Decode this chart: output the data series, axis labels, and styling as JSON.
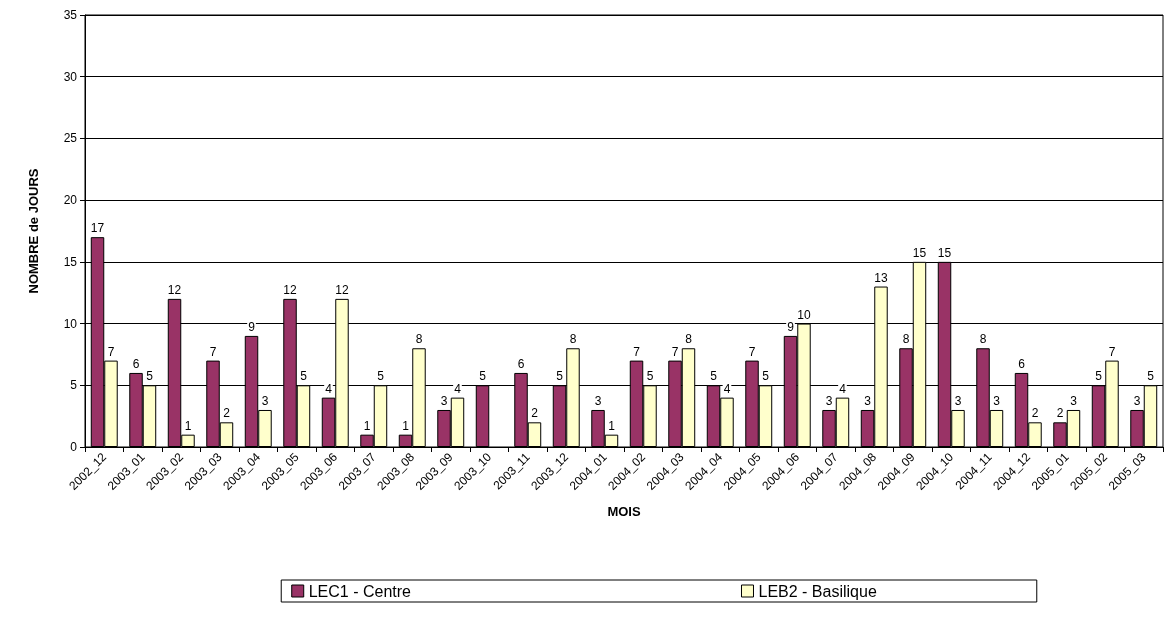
{
  "chart_data": {
    "type": "bar",
    "xlabel": "MOIS",
    "ylabel": "NOMBRE de JOURS",
    "categories": [
      "2002_12",
      "2003_01",
      "2003_02",
      "2003_03",
      "2003_04",
      "2003_05",
      "2003_06",
      "2003_07",
      "2003_08",
      "2003_09",
      "2003_10",
      "2003_11",
      "2003_12",
      "2004_01",
      "2004_02",
      "2004_03",
      "2004_04",
      "2004_05",
      "2004_06",
      "2004_07",
      "2004_08",
      "2004_09",
      "2004_10",
      "2004_11",
      "2004_12",
      "2005_01",
      "2005_02",
      "2005_03"
    ],
    "series": [
      {
        "name": "LEC1 - Centre",
        "color": "#993366",
        "values": [
          17,
          6,
          12,
          7,
          9,
          12,
          4,
          1,
          1,
          3,
          5,
          6,
          5,
          3,
          7,
          7,
          5,
          7,
          9,
          3,
          3,
          8,
          15,
          8,
          6,
          2,
          5,
          3
        ]
      },
      {
        "name": "LEB2 - Basilique",
        "color": "#ffffcc",
        "values": [
          7,
          5,
          1,
          2,
          3,
          5,
          12,
          5,
          8,
          4,
          null,
          2,
          8,
          1,
          5,
          8,
          4,
          5,
          10,
          4,
          13,
          15,
          3,
          3,
          2,
          3,
          7,
          5
        ]
      }
    ],
    "ylim": [
      0,
      35
    ],
    "yticks": [
      0,
      5,
      10,
      15,
      20,
      25,
      30,
      35
    ],
    "grid": "y",
    "legend": "bottom",
    "data_labels": true
  }
}
